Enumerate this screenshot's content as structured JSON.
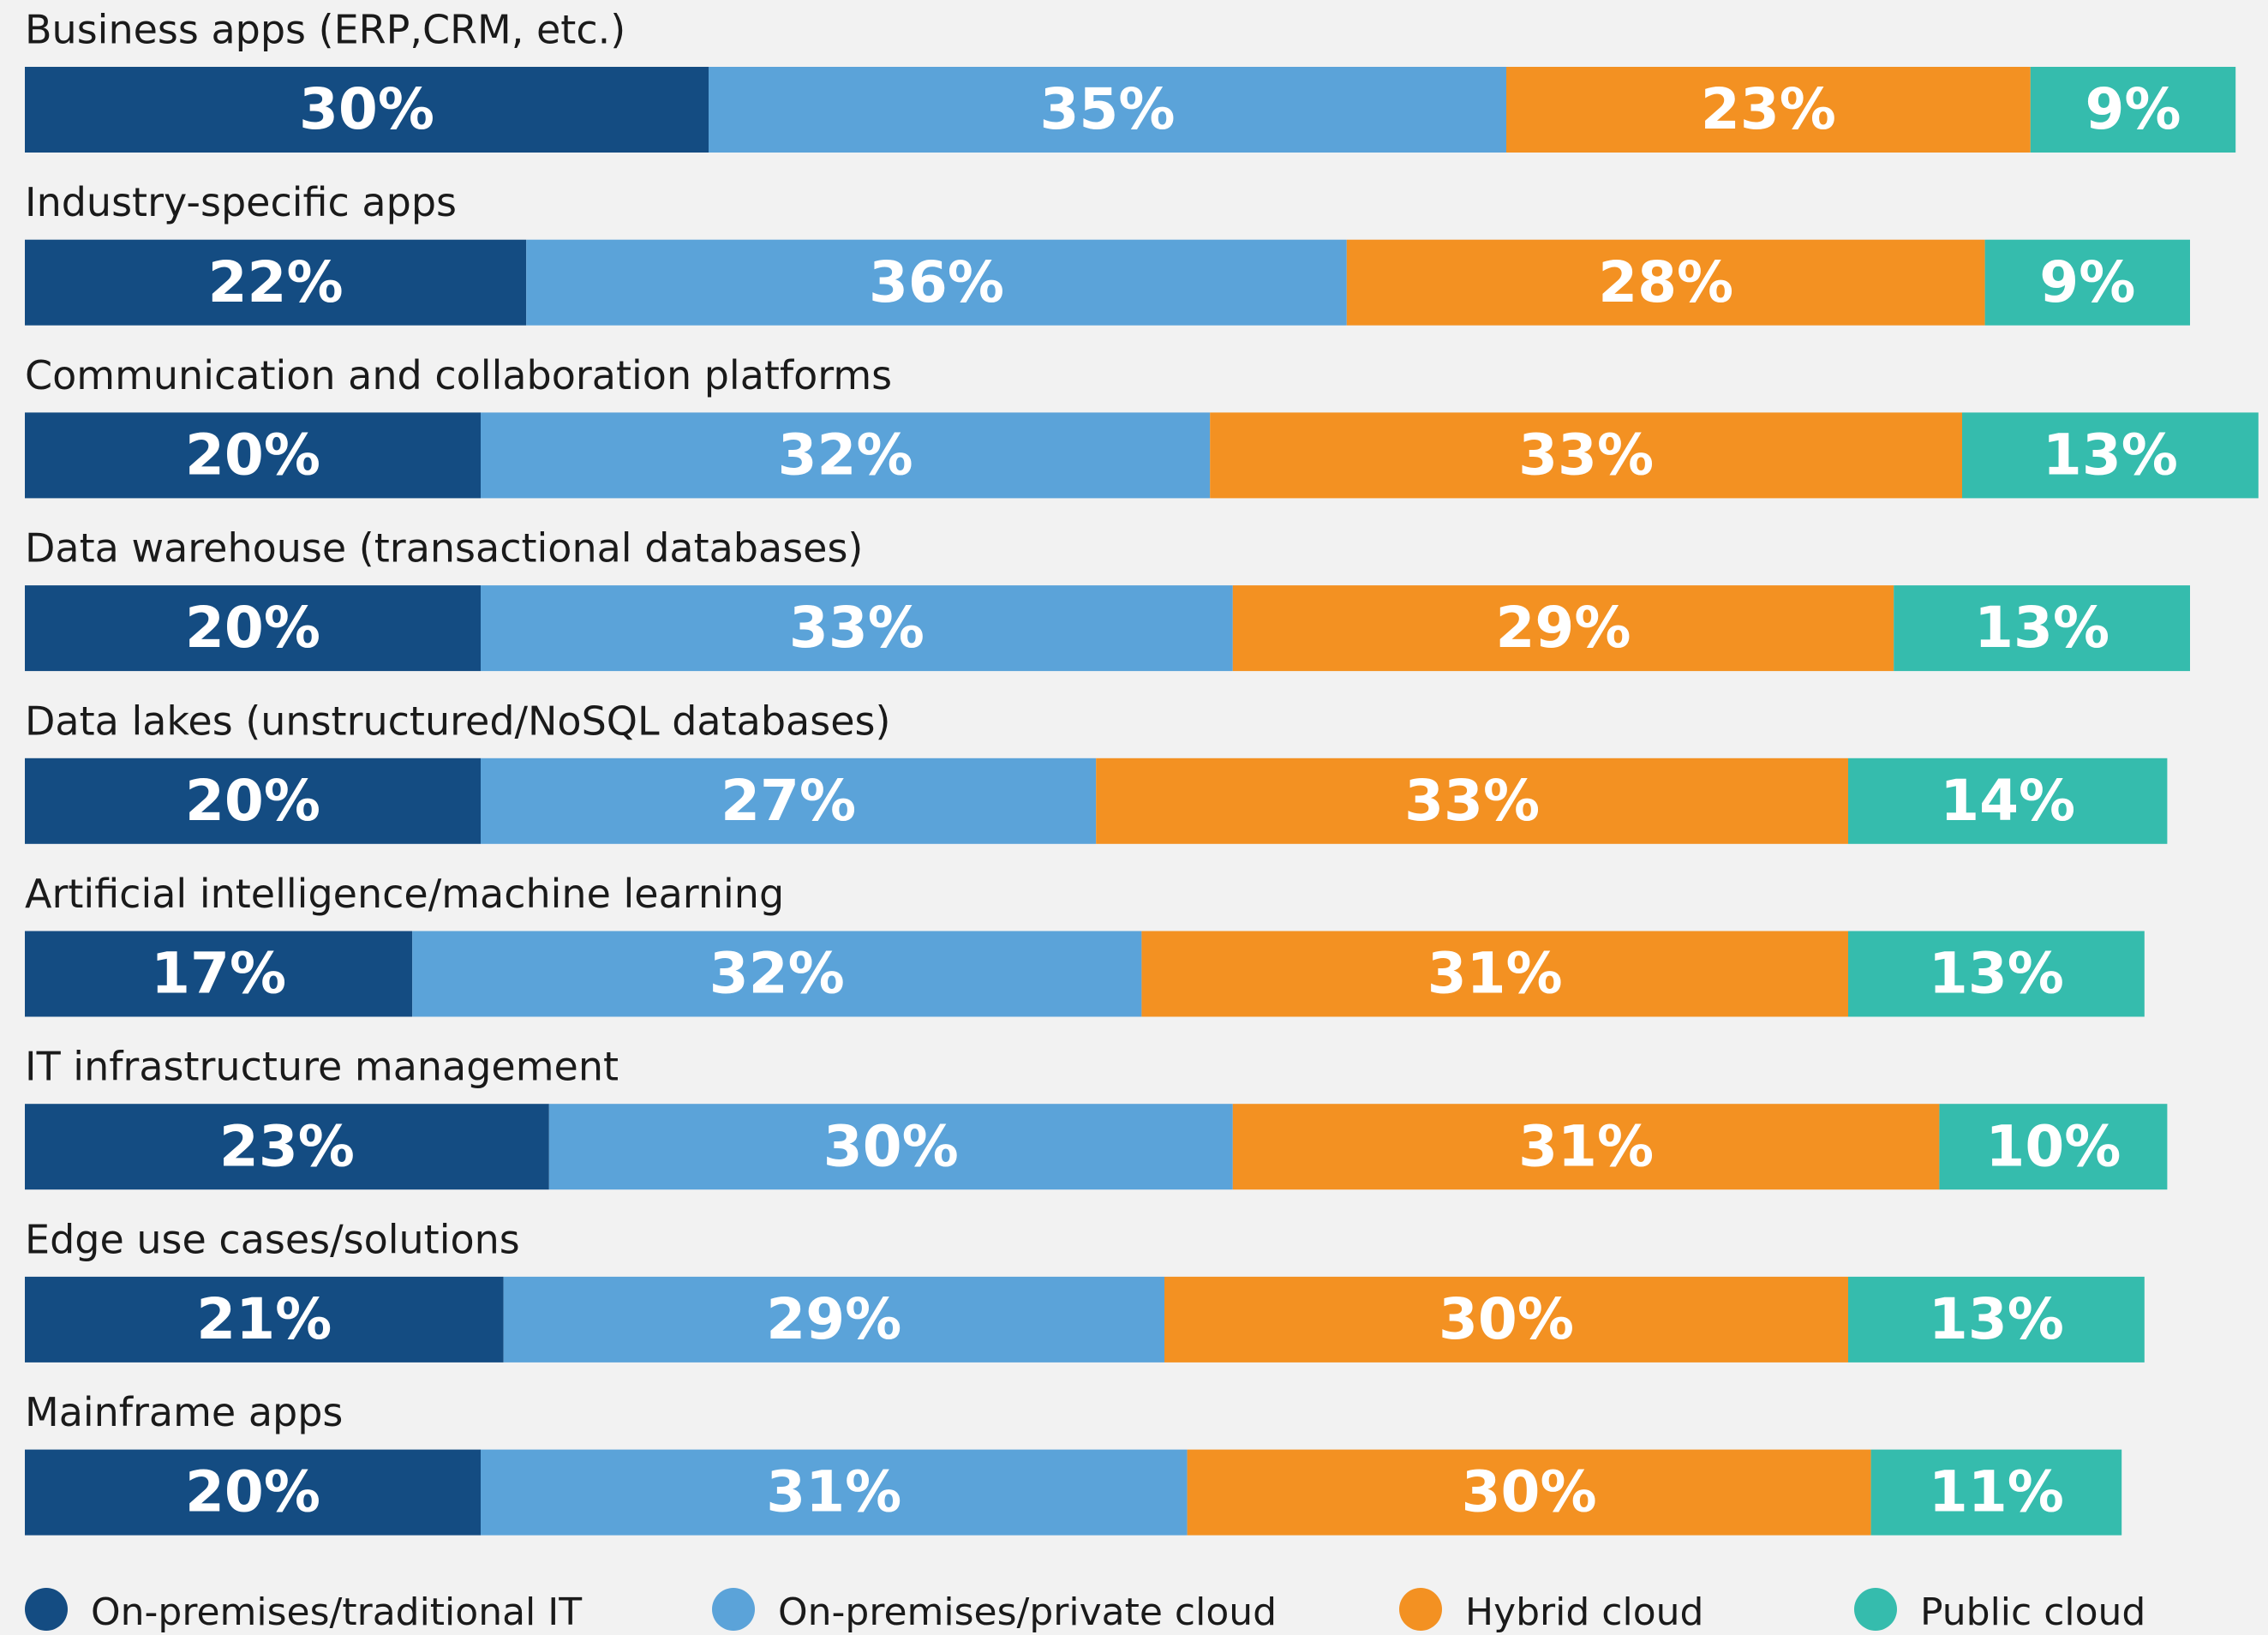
{
  "chart_data": {
    "type": "stacked-bar-horizontal",
    "categories": [
      "Business apps (ERP,CRM, etc.)",
      "Industry-specific apps",
      "Communication and collaboration platforms",
      "Data warehouse (transactional databases)",
      "Data lakes (unstructured/NoSQL databases)",
      "Artificial intelligence/machine learning",
      "IT infrastructure management",
      "Edge use cases/solutions",
      "Mainframe apps"
    ],
    "xlim": [
      0,
      100
    ],
    "legend": "bottom",
    "series": [
      {
        "name": "On-premises/traditional IT",
        "color": "#144c82",
        "values": [
          30,
          22,
          20,
          20,
          20,
          17,
          23,
          21,
          20
        ],
        "value_labels": [
          "30%",
          "22%",
          "20%",
          "20%",
          "20%",
          "17%",
          "23%",
          "21%",
          "20%"
        ]
      },
      {
        "name": "On-premises/private cloud",
        "color": "#5ba3d9",
        "values": [
          35,
          36,
          32,
          33,
          27,
          32,
          30,
          29,
          31
        ],
        "value_labels": [
          "35%",
          "36%",
          "32%",
          "33%",
          "27%",
          "32%",
          "30%",
          "29%",
          "31%"
        ]
      },
      {
        "name": "Hybrid cloud",
        "color": "#f39122",
        "values": [
          23,
          28,
          33,
          29,
          33,
          31,
          31,
          30,
          30
        ],
        "value_labels": [
          "23%",
          "28%",
          "33%",
          "29%",
          "33%",
          "31%",
          "31%",
          "30%",
          "30%"
        ]
      },
      {
        "name": "Public cloud",
        "color": "#35bcad",
        "values": [
          9,
          9,
          13,
          13,
          14,
          13,
          10,
          13,
          11
        ],
        "value_labels": [
          "9%",
          "9%",
          "13%",
          "13%",
          "14%",
          "13%",
          "10%",
          "13%",
          "11%"
        ]
      }
    ]
  }
}
